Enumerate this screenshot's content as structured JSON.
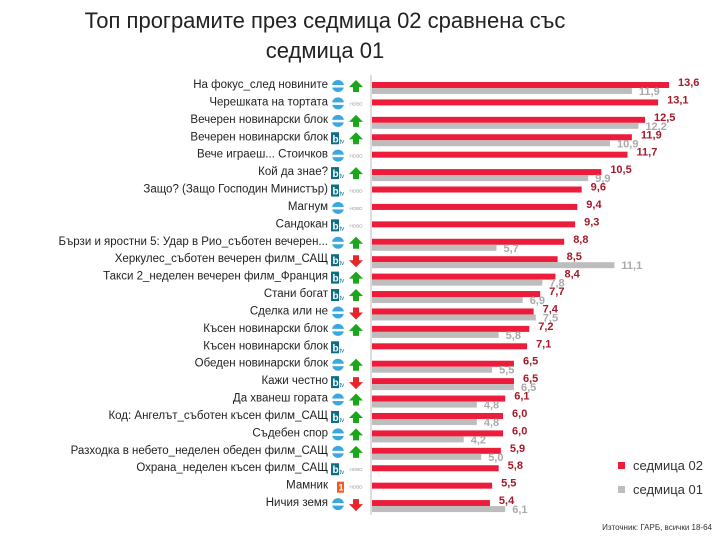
{
  "title": "Топ програмите през седмица 02 сравнена със седмица 01",
  "source": "Източник: ГАРБ, всички 18-64",
  "colors": {
    "week02": "#ed1c3a",
    "week01": "#bdbdbd",
    "up": "#1aa81a",
    "down": "#e8242b"
  },
  "chart_data": {
    "type": "bar",
    "orientation": "horizontal",
    "title": "Топ програмите през седмица 02 сравнена със седмица 01",
    "legend_position": "bottom-right",
    "xlim": [
      0,
      14
    ],
    "categories": [
      "На фокус_след новините",
      "Черешката на тортата",
      "Вечерен новинарски блок",
      "Вечерен новинарски блок",
      "Вече играеш... Стоичков",
      "Кой да знае?",
      "Защо? (Защо Господин Министър)",
      "Магнум",
      "Сандокан",
      "Бързи и яростни 5: Удар в Рио_съботен вечерен...",
      "Херкулес_съботен вечерен филм_САЩ",
      "Такси 2_неделен вечерен филм_Франция",
      "Стани богат",
      "Сделка или не",
      "Късен новинарски блок",
      "Късен новинарски блок",
      "Обеден новинарски блок",
      "Кажи честно",
      "Да хванеш гората",
      "Код: Ангелът_съботен късен филм_САЩ",
      "Съдебен спор",
      "Разходка в небето_неделен обеден филм_САЩ",
      "Охрана_неделен късен филм_САЩ",
      "Мамник",
      "Ничия земя"
    ],
    "channels": [
      "nova",
      "nova",
      "nova",
      "btv",
      "nova",
      "btv",
      "btv",
      "nova",
      "btv",
      "nova",
      "btv",
      "btv",
      "btv",
      "nova",
      "nova",
      "btv",
      "nova",
      "btv",
      "nova",
      "btv",
      "nova",
      "nova",
      "btv",
      "kanal1",
      "nova"
    ],
    "trend": [
      "up",
      "new",
      "up",
      "up",
      "new",
      "up",
      "new",
      "new",
      "new",
      "up",
      "down",
      "up",
      "up",
      "down",
      "up",
      "none",
      "up",
      "down",
      "up",
      "up",
      "up",
      "up",
      "new",
      "new",
      "down"
    ],
    "new_label": "НОВО",
    "series": [
      {
        "name": "седмица 02",
        "values": [
          13.6,
          13.1,
          12.5,
          11.9,
          11.7,
          10.5,
          9.6,
          9.4,
          9.3,
          8.8,
          8.5,
          8.4,
          7.7,
          7.4,
          7.2,
          7.1,
          6.5,
          6.5,
          6.1,
          6.0,
          6.0,
          5.9,
          5.8,
          5.5,
          5.4
        ],
        "labels": [
          "13,6",
          "13,1",
          "12,5",
          "11,9",
          "11,7",
          "10,5",
          "9,6",
          "9,4",
          "9,3",
          "8,8",
          "8,5",
          "8,4",
          "7,7",
          "7,4",
          "7,2",
          "7,1",
          "6,5",
          "6,5",
          "6,1",
          "6,0",
          "6,0",
          "5,9",
          "5,8",
          "5,5",
          "5,4"
        ]
      },
      {
        "name": "седмица 01",
        "values": [
          11.9,
          null,
          12.2,
          10.9,
          null,
          9.9,
          null,
          null,
          null,
          5.7,
          11.1,
          7.8,
          6.9,
          7.5,
          5.8,
          null,
          5.5,
          6.5,
          4.8,
          4.8,
          4.2,
          5.0,
          null,
          null,
          6.1
        ],
        "labels": [
          "11,9",
          null,
          "12,2",
          "10,9",
          null,
          "9,9",
          null,
          null,
          null,
          "5,7",
          "11,1",
          "7,8",
          "6,9",
          "7,5",
          "5,8",
          null,
          "5,5",
          "6,5",
          "4,8",
          "4,8",
          "4,2",
          "5,0",
          null,
          null,
          "6,1"
        ]
      }
    ]
  }
}
